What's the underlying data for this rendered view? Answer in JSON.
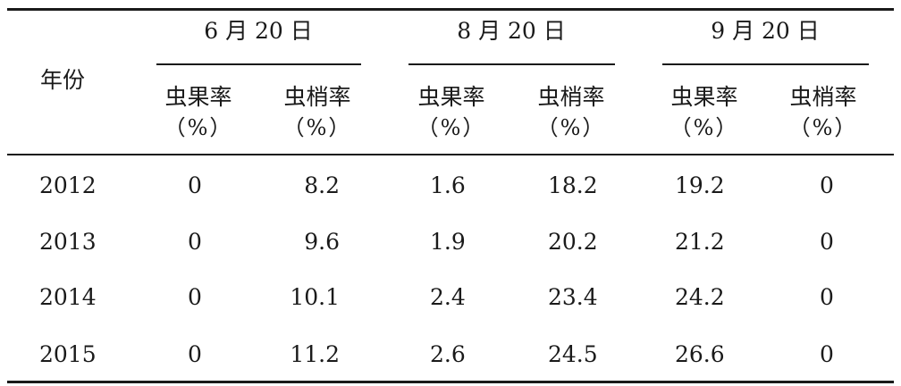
{
  "table": {
    "year_header": "年份",
    "groups": [
      "6 月 20 日",
      "8 月 20 日",
      "9 月 20 日"
    ],
    "sub_headers": [
      {
        "label": "虫果率",
        "unit": "（%）"
      },
      {
        "label": "虫梢率",
        "unit": "（%）"
      },
      {
        "label": "虫果率",
        "unit": "（%）"
      },
      {
        "label": "虫梢率",
        "unit": "（%）"
      },
      {
        "label": "虫果率",
        "unit": "（%）"
      },
      {
        "label": "虫梢率",
        "unit": "（%）"
      }
    ],
    "rows": [
      {
        "year": "2012",
        "values": [
          "0",
          "8.2",
          "1.6",
          "18.2",
          "19.2",
          "0"
        ]
      },
      {
        "year": "2013",
        "values": [
          "0",
          "9.6",
          "1.9",
          "20.2",
          "21.2",
          "0"
        ]
      },
      {
        "year": "2014",
        "values": [
          "0",
          "10.1",
          "2.4",
          "23.4",
          "24.2",
          "0"
        ]
      },
      {
        "year": "2015",
        "values": [
          "0",
          "11.2",
          "2.6",
          "24.5",
          "26.6",
          "0"
        ]
      }
    ]
  }
}
